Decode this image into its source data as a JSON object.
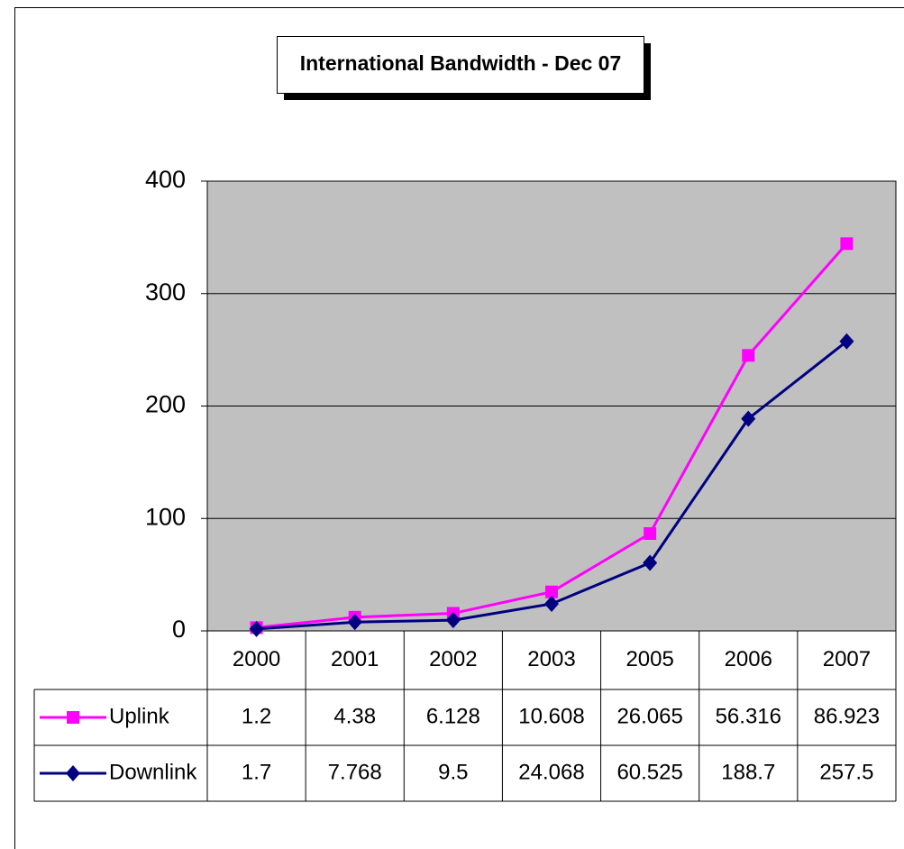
{
  "chart_data": {
    "type": "line",
    "stacked": true,
    "title": "International Bandwidth - Dec 07",
    "categories": [
      "2000",
      "2001",
      "2002",
      "2003",
      "2005",
      "2006",
      "2007"
    ],
    "series": [
      {
        "name": "Uplink",
        "color": "#ff00ff",
        "marker": "square",
        "values": [
          1.2,
          4.38,
          6.128,
          10.608,
          26.065,
          56.316,
          86.923
        ]
      },
      {
        "name": "Downlink",
        "color": "#000080",
        "marker": "diamond",
        "values": [
          1.7,
          7.768,
          9.5,
          24.068,
          60.525,
          188.7,
          257.5
        ]
      }
    ],
    "ylim": [
      0,
      400
    ],
    "yticks": [
      0,
      100,
      200,
      300,
      400
    ],
    "grid": true,
    "plot_background": "#c0c0c0"
  }
}
